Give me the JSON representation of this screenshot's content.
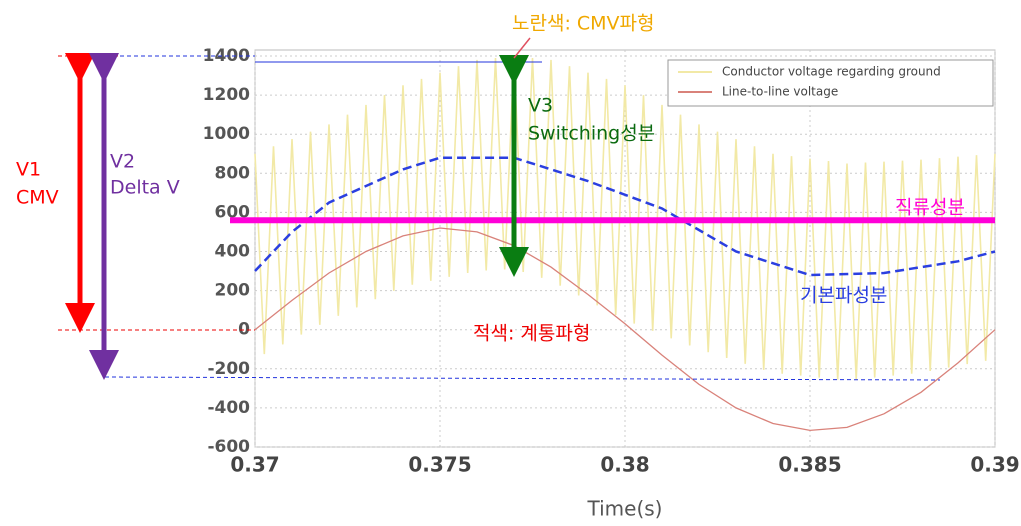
{
  "chart_data": {
    "type": "line",
    "x_label": "Time(s)",
    "xlim": [
      0.37,
      0.39
    ],
    "xticks": [
      0.37,
      0.375,
      0.38,
      0.385,
      0.39
    ],
    "ylim": [
      -600,
      1400
    ],
    "yticks": [
      -600,
      -400,
      -200,
      0,
      200,
      400,
      600,
      800,
      1000,
      1200,
      1400
    ],
    "grid": true,
    "legend": "upper right",
    "series": [
      {
        "name": "Conductor voltage regarding ground",
        "color": "#f2e9a6",
        "x": [
          0.37,
          0.37025,
          0.3705,
          0.37075,
          0.371,
          0.37125,
          0.3715,
          0.37175,
          0.372,
          0.37225,
          0.3725,
          0.37275,
          0.373,
          0.37325,
          0.3735,
          0.37375,
          0.374,
          0.37425,
          0.3745,
          0.37475,
          0.375,
          0.37525,
          0.3755,
          0.37575,
          0.376,
          0.37625,
          0.3765,
          0.37675,
          0.377,
          0.37725,
          0.3775,
          0.37775,
          0.378,
          0.37825,
          0.3785,
          0.37875,
          0.379,
          0.37925,
          0.3795,
          0.37975,
          0.38,
          0.38025,
          0.3805,
          0.38075,
          0.381,
          0.38125,
          0.3815,
          0.38175,
          0.382,
          0.38225,
          0.3825,
          0.38275,
          0.383,
          0.38325,
          0.3835,
          0.38375,
          0.384,
          0.38425,
          0.3845,
          0.38475,
          0.385,
          0.38525,
          0.3855,
          0.38575,
          0.386,
          0.38625,
          0.3865,
          0.38675,
          0.387,
          0.38725,
          0.3875,
          0.38775,
          0.388,
          0.38825,
          0.3885,
          0.38875,
          0.389,
          0.38925,
          0.3895,
          0.38975,
          0.39
        ],
        "values": [
          900,
          -125,
          938,
          -75,
          975,
          -25,
          1013,
          25,
          1050,
          71,
          1100,
          114,
          1150,
          156,
          1200,
          199,
          1250,
          230,
          1283,
          250,
          1315,
          270,
          1348,
          290,
          1380,
          303,
          1390,
          308,
          1400,
          295,
          1390,
          265,
          1380,
          225,
          1348,
          175,
          1315,
          125,
          1283,
          75,
          1250,
          31,
          1200,
          -6,
          1150,
          -44,
          1100,
          -81,
          1050,
          -115,
          1013,
          -145,
          975,
          -175,
          938,
          -205,
          900,
          -225,
          888,
          -235,
          875,
          -245,
          863,
          -255,
          850,
          -255,
          855,
          -245,
          860,
          -235,
          865,
          -225,
          870,
          -211,
          878,
          -194,
          885,
          -176,
          893,
          -159,
          900
        ]
      },
      {
        "name": "Line-to-line voltage",
        "color": "#d9827a",
        "x": [
          0.37,
          0.371,
          0.372,
          0.373,
          0.374,
          0.375,
          0.376,
          0.377,
          0.378,
          0.379,
          0.38,
          0.381,
          0.382,
          0.383,
          0.384,
          0.385,
          0.386,
          0.387,
          0.388,
          0.389,
          0.39
        ],
        "values": [
          0,
          150,
          290,
          400,
          480,
          520,
          500,
          430,
          320,
          180,
          30,
          -130,
          -280,
          -400,
          -480,
          -515,
          -500,
          -430,
          -320,
          -170,
          0
        ]
      }
    ],
    "fundamental": {
      "name": "기본파성분",
      "color": "#2b3fe0",
      "x": [
        0.37,
        0.371,
        0.372,
        0.374,
        0.375,
        0.377,
        0.379,
        0.381,
        0.383,
        0.385,
        0.387,
        0.389,
        0.39
      ],
      "values": [
        300,
        500,
        650,
        820,
        880,
        880,
        760,
        620,
        400,
        280,
        290,
        350,
        400
      ]
    },
    "dc": {
      "name": "직류성분",
      "color": "#ff00d8",
      "value": 560
    },
    "annotations": [
      "노란색: CMV파형",
      "V1",
      "CMV",
      "V2",
      "Delta V",
      "V3",
      "Switching성분",
      "적색: 계통파형"
    ]
  }
}
